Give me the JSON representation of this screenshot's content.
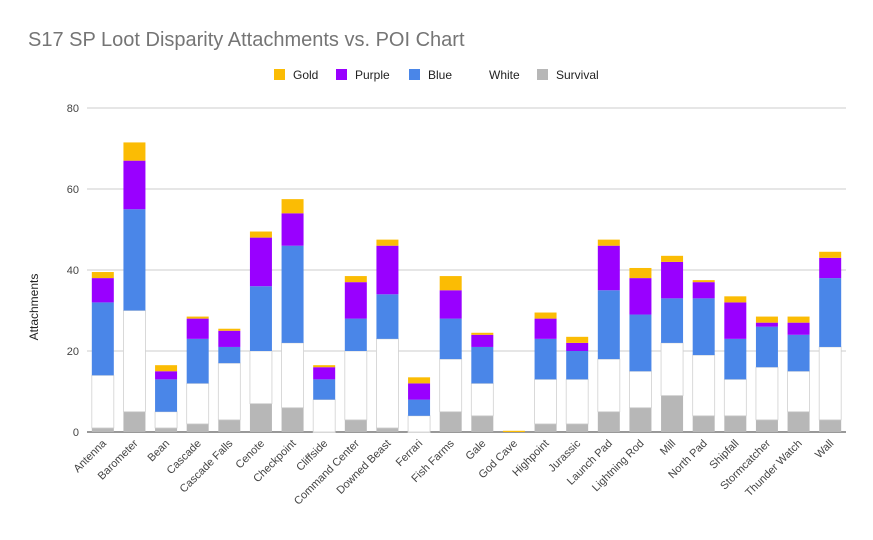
{
  "chart_data": {
    "type": "bar",
    "stacked": true,
    "title": "S17 SP Loot Disparity Attachments vs. POI Chart",
    "xlabel": "",
    "ylabel": "Attachments",
    "ylim": [
      0,
      80
    ],
    "yticks": [
      0,
      20,
      40,
      60,
      80
    ],
    "grid": true,
    "legend_position": "top",
    "categories": [
      "Antenna",
      "Barometer",
      "Bean",
      "Cascade",
      "Cascade Falls",
      "Cenote",
      "Checkpoint",
      "Cliffside",
      "Command Center",
      "Downed Beast",
      "Ferrari",
      "Fish Farms",
      "Gale",
      "God Cave",
      "Highpoint",
      "Jurassic",
      "Launch Pad",
      "Lightning Rod",
      "Mill",
      "North Pad",
      "Shipfall",
      "Stormcatcher",
      "Thunder Watch",
      "Wall"
    ],
    "legend_order": [
      "Gold",
      "Purple",
      "Blue",
      "White",
      "Survival"
    ],
    "series": [
      {
        "name": "Survival",
        "color": "#b7b7b7",
        "values": [
          1,
          5,
          1,
          2,
          3,
          7,
          6,
          0,
          3,
          1,
          0,
          5,
          4,
          0,
          2,
          2,
          5,
          6,
          9,
          4,
          4,
          3,
          5,
          3
        ]
      },
      {
        "name": "White",
        "color": "#ffffff",
        "values": [
          13,
          25,
          4,
          10,
          14,
          13,
          16,
          8,
          17,
          22,
          4,
          13,
          8,
          0,
          11,
          11,
          13,
          9,
          13,
          15,
          9,
          13,
          10,
          18
        ]
      },
      {
        "name": "Blue",
        "color": "#4a86e8",
        "values": [
          18,
          25,
          8,
          11,
          4,
          16,
          24,
          5,
          8,
          11,
          4,
          10,
          9,
          0,
          10,
          7,
          17,
          14,
          11,
          14,
          10,
          10,
          9,
          17
        ]
      },
      {
        "name": "Purple",
        "color": "#9900ff",
        "values": [
          6,
          12,
          2,
          5,
          4,
          12,
          8,
          3,
          9,
          12,
          4,
          7,
          3,
          0,
          5,
          2,
          11,
          9,
          9,
          4,
          9,
          1,
          3,
          5
        ]
      },
      {
        "name": "Gold",
        "color": "#fbbc04",
        "values": [
          1.5,
          4.5,
          1.5,
          0.5,
          0.5,
          1.5,
          3.5,
          0.5,
          1.5,
          1.5,
          1.5,
          3.5,
          0.5,
          0.3,
          1.5,
          1.5,
          1.5,
          2.5,
          1.5,
          0.5,
          1.5,
          1.5,
          1.5,
          1.5
        ]
      }
    ]
  }
}
